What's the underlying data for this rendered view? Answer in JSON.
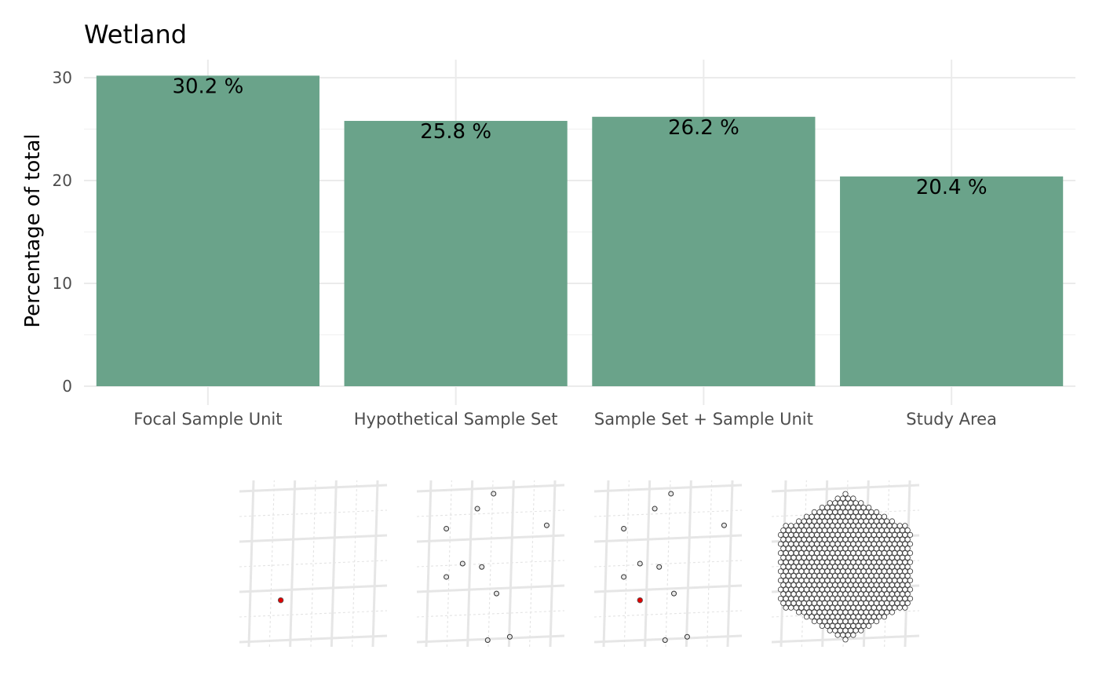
{
  "colors": {
    "bar": "#6aa38a",
    "focal_point": "#e00000",
    "point_fill": "#ffffff",
    "point_stroke": "#333333"
  },
  "chart_data": {
    "type": "bar",
    "title": "Wetland",
    "xlabel": "",
    "ylabel": "Percentage of total",
    "categories": [
      "Focal Sample Unit",
      "Hypothetical Sample Set",
      "Sample Set + Sample Unit",
      "Study Area"
    ],
    "values": [
      30.2,
      25.8,
      26.2,
      20.4
    ],
    "data_labels": [
      "30.2 %",
      "25.8 %",
      "26.2 %",
      "20.4 %"
    ],
    "yticks": [
      0,
      10,
      20,
      30
    ],
    "ylim": [
      0,
      31.5
    ],
    "grid": true,
    "legend": "none"
  },
  "insets": [
    {
      "name": "focal-sample-unit-map",
      "points": [],
      "focal": [
        [
          0.28,
          0.72
        ]
      ]
    },
    {
      "name": "hypothetical-sample-set-map",
      "points": [
        [
          0.52,
          0.08
        ],
        [
          0.41,
          0.17
        ],
        [
          0.2,
          0.29
        ],
        [
          0.88,
          0.27
        ],
        [
          0.31,
          0.5
        ],
        [
          0.44,
          0.52
        ],
        [
          0.2,
          0.58
        ],
        [
          0.54,
          0.68
        ],
        [
          0.48,
          0.96
        ],
        [
          0.63,
          0.94
        ]
      ],
      "focal": []
    },
    {
      "name": "sample-set-plus-sample-unit-map",
      "points": [
        [
          0.52,
          0.08
        ],
        [
          0.41,
          0.17
        ],
        [
          0.2,
          0.29
        ],
        [
          0.88,
          0.27
        ],
        [
          0.31,
          0.5
        ],
        [
          0.44,
          0.52
        ],
        [
          0.2,
          0.58
        ],
        [
          0.54,
          0.68
        ],
        [
          0.48,
          0.96
        ],
        [
          0.63,
          0.94
        ]
      ],
      "focal": [
        [
          0.31,
          0.72
        ]
      ]
    },
    {
      "name": "study-area-map",
      "hex": true,
      "points": [],
      "focal": []
    }
  ]
}
